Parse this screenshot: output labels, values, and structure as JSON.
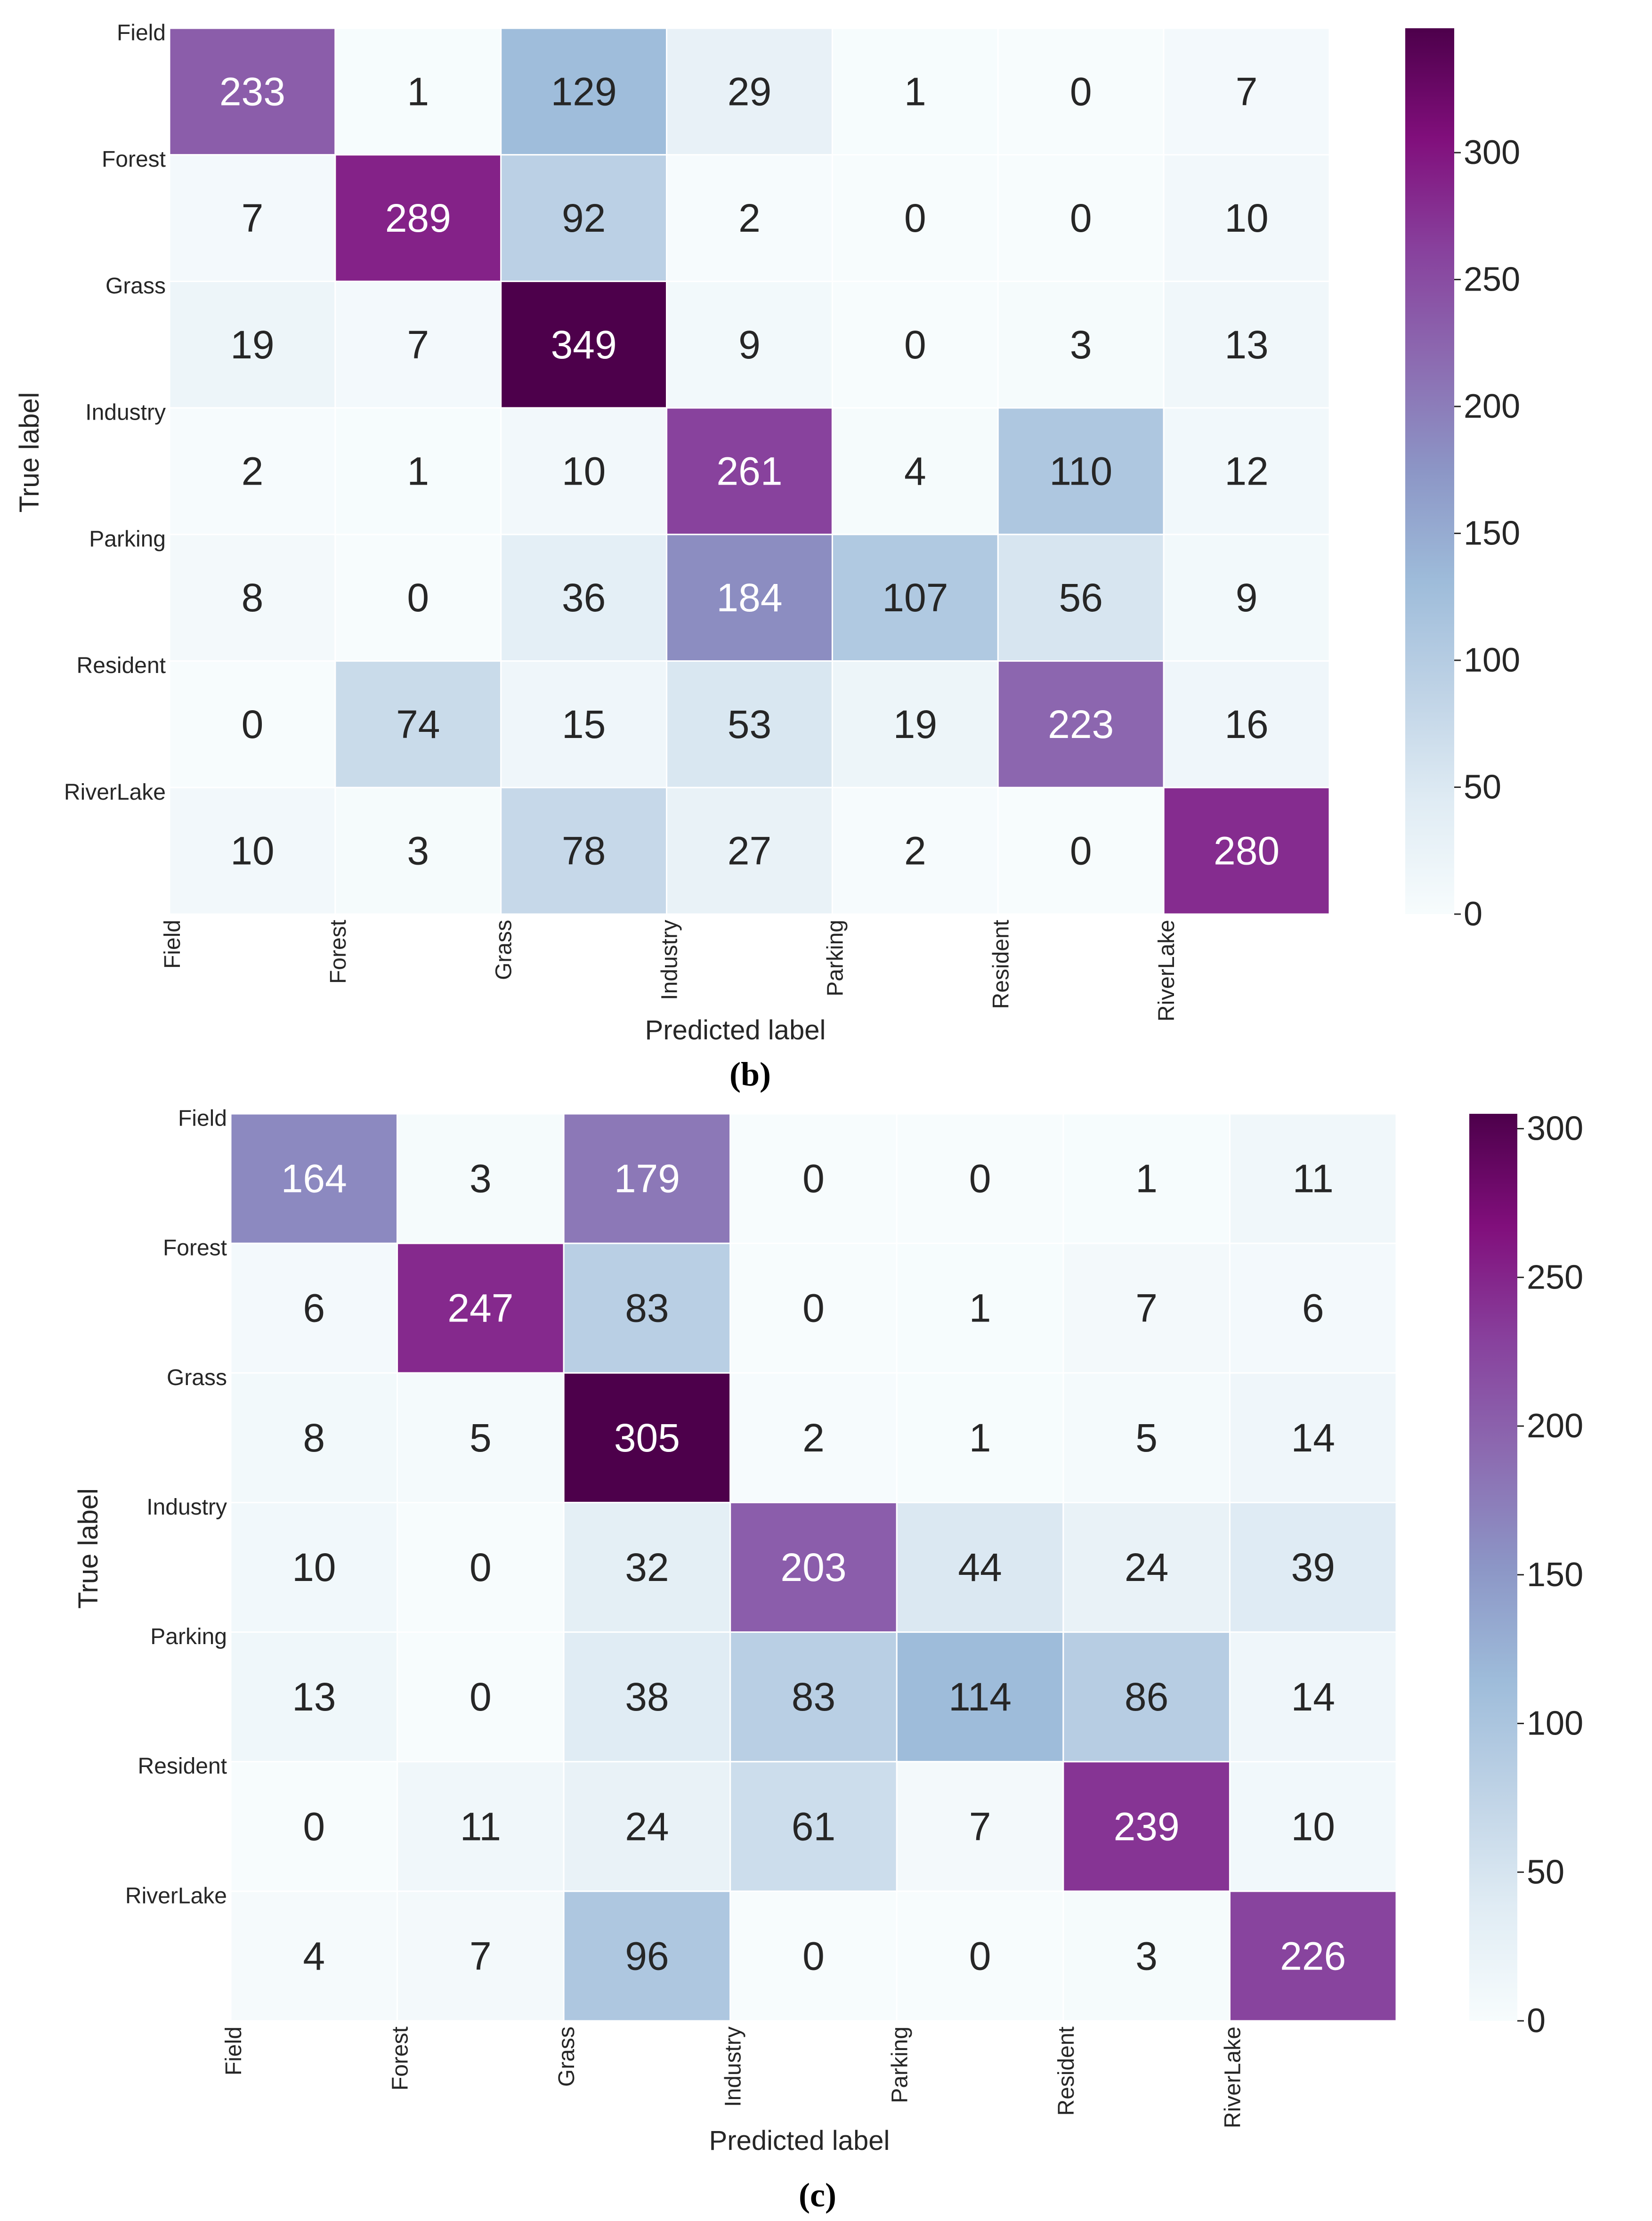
{
  "chart_data": [
    {
      "type": "heatmap",
      "panel_label": "b",
      "title": "",
      "xlabel": "Predicted label",
      "ylabel": "True label",
      "x_categories": [
        "Field",
        "Forest",
        "Grass",
        "Industry",
        "Parking",
        "Resident",
        "RiverLake"
      ],
      "y_categories": [
        "Field",
        "Forest",
        "Grass",
        "Industry",
        "Parking",
        "Resident",
        "RiverLake"
      ],
      "values": [
        [
          233,
          1,
          129,
          29,
          1,
          0,
          7
        ],
        [
          7,
          289,
          92,
          2,
          0,
          0,
          10
        ],
        [
          19,
          7,
          349,
          9,
          0,
          3,
          13
        ],
        [
          2,
          1,
          10,
          261,
          4,
          110,
          12
        ],
        [
          8,
          0,
          36,
          184,
          107,
          56,
          9
        ],
        [
          0,
          74,
          15,
          53,
          19,
          223,
          16
        ],
        [
          10,
          3,
          78,
          27,
          2,
          0,
          280
        ]
      ],
      "colormap": "BuPu",
      "color_range": [
        0,
        349
      ],
      "colorbar_ticks": [
        0,
        50,
        100,
        150,
        200,
        250,
        300
      ]
    },
    {
      "type": "heatmap",
      "panel_label": "c",
      "title": "",
      "xlabel": "Predicted label",
      "ylabel": "True label",
      "x_categories": [
        "Field",
        "Forest",
        "Grass",
        "Industry",
        "Parking",
        "Resident",
        "RiverLake"
      ],
      "y_categories": [
        "Field",
        "Forest",
        "Grass",
        "Industry",
        "Parking",
        "Resident",
        "RiverLake"
      ],
      "values": [
        [
          164,
          3,
          179,
          0,
          0,
          1,
          11
        ],
        [
          6,
          247,
          83,
          0,
          1,
          7,
          6
        ],
        [
          8,
          5,
          305,
          2,
          1,
          5,
          14
        ],
        [
          10,
          0,
          32,
          203,
          44,
          24,
          39
        ],
        [
          13,
          0,
          38,
          83,
          114,
          86,
          14
        ],
        [
          0,
          11,
          24,
          61,
          7,
          239,
          10
        ],
        [
          4,
          7,
          96,
          0,
          0,
          3,
          226
        ]
      ],
      "colormap": "BuPu",
      "color_range": [
        0,
        305
      ],
      "colorbar_ticks": [
        0,
        50,
        100,
        150,
        200,
        250,
        300
      ]
    }
  ],
  "captions": {
    "b": "(b)",
    "c": "(c)"
  },
  "colors": {
    "colormap_stops": [
      "#f7fcfd",
      "#e0ecf4",
      "#bfd3e6",
      "#9ebcda",
      "#8c96c6",
      "#8c6bb1",
      "#88419d",
      "#810f7c",
      "#4d004b"
    ],
    "cell_border": "#ffffff",
    "text_dark": "#262626",
    "text_light": "#ffffff",
    "tick_color": "#262626"
  }
}
